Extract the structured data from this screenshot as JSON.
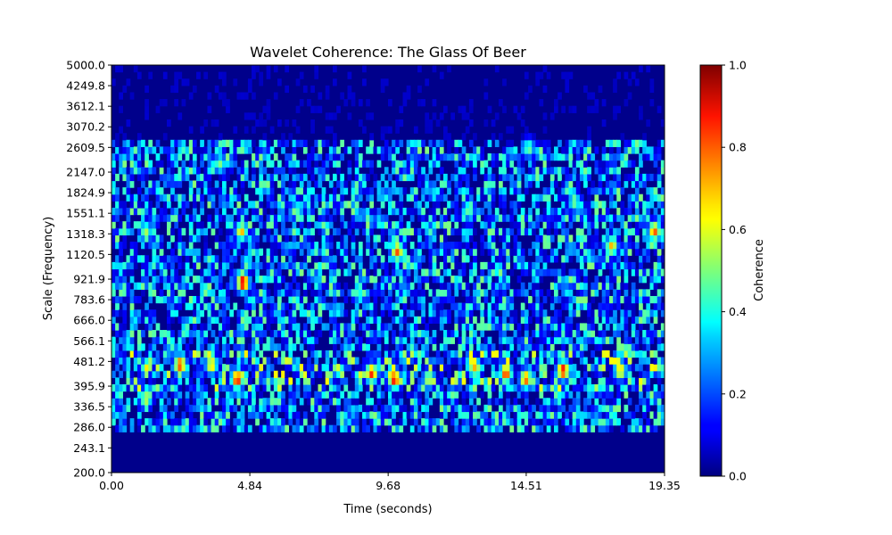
{
  "chart_data": {
    "type": "heatmap",
    "title": "Wavelet Coherence: The Glass Of Beer",
    "xlabel": "Time (seconds)",
    "ylabel": "Scale (Frequency)",
    "xlim": [
      0,
      19.35
    ],
    "ylim": [
      200,
      5000
    ],
    "y_scale": "log",
    "x_ticks": [
      "0.00",
      "4.84",
      "9.68",
      "14.51",
      "19.35"
    ],
    "y_ticks": [
      "200.0",
      "243.1",
      "286.0",
      "336.5",
      "395.9",
      "481.2",
      "566.1",
      "666.0",
      "783.6",
      "921.9",
      "1120.5",
      "1318.3",
      "1551.1",
      "1824.9",
      "2147.0",
      "2609.5",
      "3070.2",
      "3612.1",
      "4249.8",
      "5000.0"
    ],
    "colormap": "jet",
    "colorbar": {
      "label": "Coherence",
      "range": [
        0,
        1
      ],
      "ticks": [
        "0.0",
        "0.2",
        "0.4",
        "0.6",
        "0.8",
        "1.0"
      ]
    },
    "hotspots": [
      {
        "time": 2.4,
        "scale": 470,
        "value": 0.85
      },
      {
        "time": 3.5,
        "scale": 470,
        "value": 0.7
      },
      {
        "time": 4.4,
        "scale": 420,
        "value": 0.9
      },
      {
        "time": 4.6,
        "scale": 900,
        "value": 0.95
      },
      {
        "time": 4.55,
        "scale": 1350,
        "value": 0.7
      },
      {
        "time": 1.2,
        "scale": 360,
        "value": 0.6
      },
      {
        "time": 1.2,
        "scale": 1350,
        "value": 0.55
      },
      {
        "time": 9.1,
        "scale": 440,
        "value": 0.85
      },
      {
        "time": 9.9,
        "scale": 420,
        "value": 0.9
      },
      {
        "time": 10.0,
        "scale": 1150,
        "value": 0.8
      },
      {
        "time": 11.1,
        "scale": 420,
        "value": 0.6
      },
      {
        "time": 12.7,
        "scale": 460,
        "value": 0.7
      },
      {
        "time": 13.8,
        "scale": 440,
        "value": 0.85
      },
      {
        "time": 14.5,
        "scale": 420,
        "value": 0.8
      },
      {
        "time": 15.8,
        "scale": 450,
        "value": 0.9
      },
      {
        "time": 17.5,
        "scale": 1200,
        "value": 0.7
      },
      {
        "time": 17.8,
        "scale": 450,
        "value": 0.7
      },
      {
        "time": 19.0,
        "scale": 1350,
        "value": 0.8
      },
      {
        "time": 14.6,
        "scale": 2600,
        "value": 0.5
      },
      {
        "time": 3.8,
        "scale": 2300,
        "value": 0.5
      },
      {
        "time": 6.5,
        "scale": 1600,
        "value": 0.45
      },
      {
        "time": 12.5,
        "scale": 1600,
        "value": 0.5
      },
      {
        "time": 16.2,
        "scale": 1700,
        "value": 0.5
      }
    ]
  }
}
